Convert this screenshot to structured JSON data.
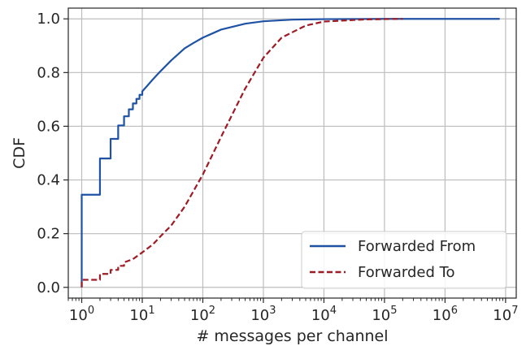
{
  "chart_data": {
    "type": "line",
    "x_scale": "log",
    "xlabel": "# messages per channel",
    "ylabel": "CDF",
    "xlim": [
      0.6,
      15000000
    ],
    "ylim": [
      -0.04,
      1.04
    ],
    "xticks": [
      1,
      10,
      100,
      1000,
      10000,
      100000,
      1000000,
      10000000
    ],
    "xtick_labels": [
      {
        "base": "10",
        "exp": "0"
      },
      {
        "base": "10",
        "exp": "1"
      },
      {
        "base": "10",
        "exp": "2"
      },
      {
        "base": "10",
        "exp": "3"
      },
      {
        "base": "10",
        "exp": "4"
      },
      {
        "base": "10",
        "exp": "5"
      },
      {
        "base": "10",
        "exp": "6"
      },
      {
        "base": "10",
        "exp": "7"
      }
    ],
    "yticks": [
      0.0,
      0.2,
      0.4,
      0.6,
      0.8,
      1.0
    ],
    "ytick_labels": [
      "0.0",
      "0.2",
      "0.4",
      "0.6",
      "0.8",
      "1.0"
    ],
    "grid": true,
    "legend_position": "bottom-right",
    "series": [
      {
        "name": "Forwarded From",
        "color": "#1f52a5",
        "dash": "solid",
        "points": [
          [
            1,
            0
          ],
          [
            1,
            0.345
          ],
          [
            2,
            0.345
          ],
          [
            2,
            0.48
          ],
          [
            3,
            0.48
          ],
          [
            3,
            0.553
          ],
          [
            4,
            0.553
          ],
          [
            4,
            0.603
          ],
          [
            5,
            0.603
          ],
          [
            5,
            0.637
          ],
          [
            6,
            0.637
          ],
          [
            6,
            0.663
          ],
          [
            7,
            0.663
          ],
          [
            7,
            0.685
          ],
          [
            8,
            0.685
          ],
          [
            8,
            0.702
          ],
          [
            9,
            0.702
          ],
          [
            9,
            0.717
          ],
          [
            10,
            0.717
          ],
          [
            10,
            0.73
          ],
          [
            12,
            0.75
          ],
          [
            15,
            0.775
          ],
          [
            20,
            0.805
          ],
          [
            30,
            0.845
          ],
          [
            50,
            0.89
          ],
          [
            70,
            0.91
          ],
          [
            100,
            0.93
          ],
          [
            200,
            0.96
          ],
          [
            500,
            0.982
          ],
          [
            1000,
            0.991
          ],
          [
            3000,
            0.997
          ],
          [
            10000,
            0.999
          ],
          [
            100000,
            1.0
          ],
          [
            8000000,
            1.0
          ]
        ]
      },
      {
        "name": "Forwarded To",
        "color": "#9e1b24",
        "dash": "dashed",
        "points": [
          [
            1,
            0
          ],
          [
            1,
            0.028
          ],
          [
            2,
            0.028
          ],
          [
            2,
            0.05
          ],
          [
            3,
            0.05
          ],
          [
            3,
            0.065
          ],
          [
            4,
            0.065
          ],
          [
            4,
            0.08
          ],
          [
            5,
            0.08
          ],
          [
            5,
            0.093
          ],
          [
            7,
            0.105
          ],
          [
            10,
            0.13
          ],
          [
            15,
            0.16
          ],
          [
            20,
            0.19
          ],
          [
            30,
            0.23
          ],
          [
            50,
            0.3
          ],
          [
            100,
            0.42
          ],
          [
            200,
            0.56
          ],
          [
            300,
            0.64
          ],
          [
            500,
            0.74
          ],
          [
            1000,
            0.855
          ],
          [
            2000,
            0.93
          ],
          [
            5000,
            0.975
          ],
          [
            10000,
            0.99
          ],
          [
            50000,
            0.998
          ],
          [
            200000,
            1.0
          ]
        ]
      }
    ]
  }
}
